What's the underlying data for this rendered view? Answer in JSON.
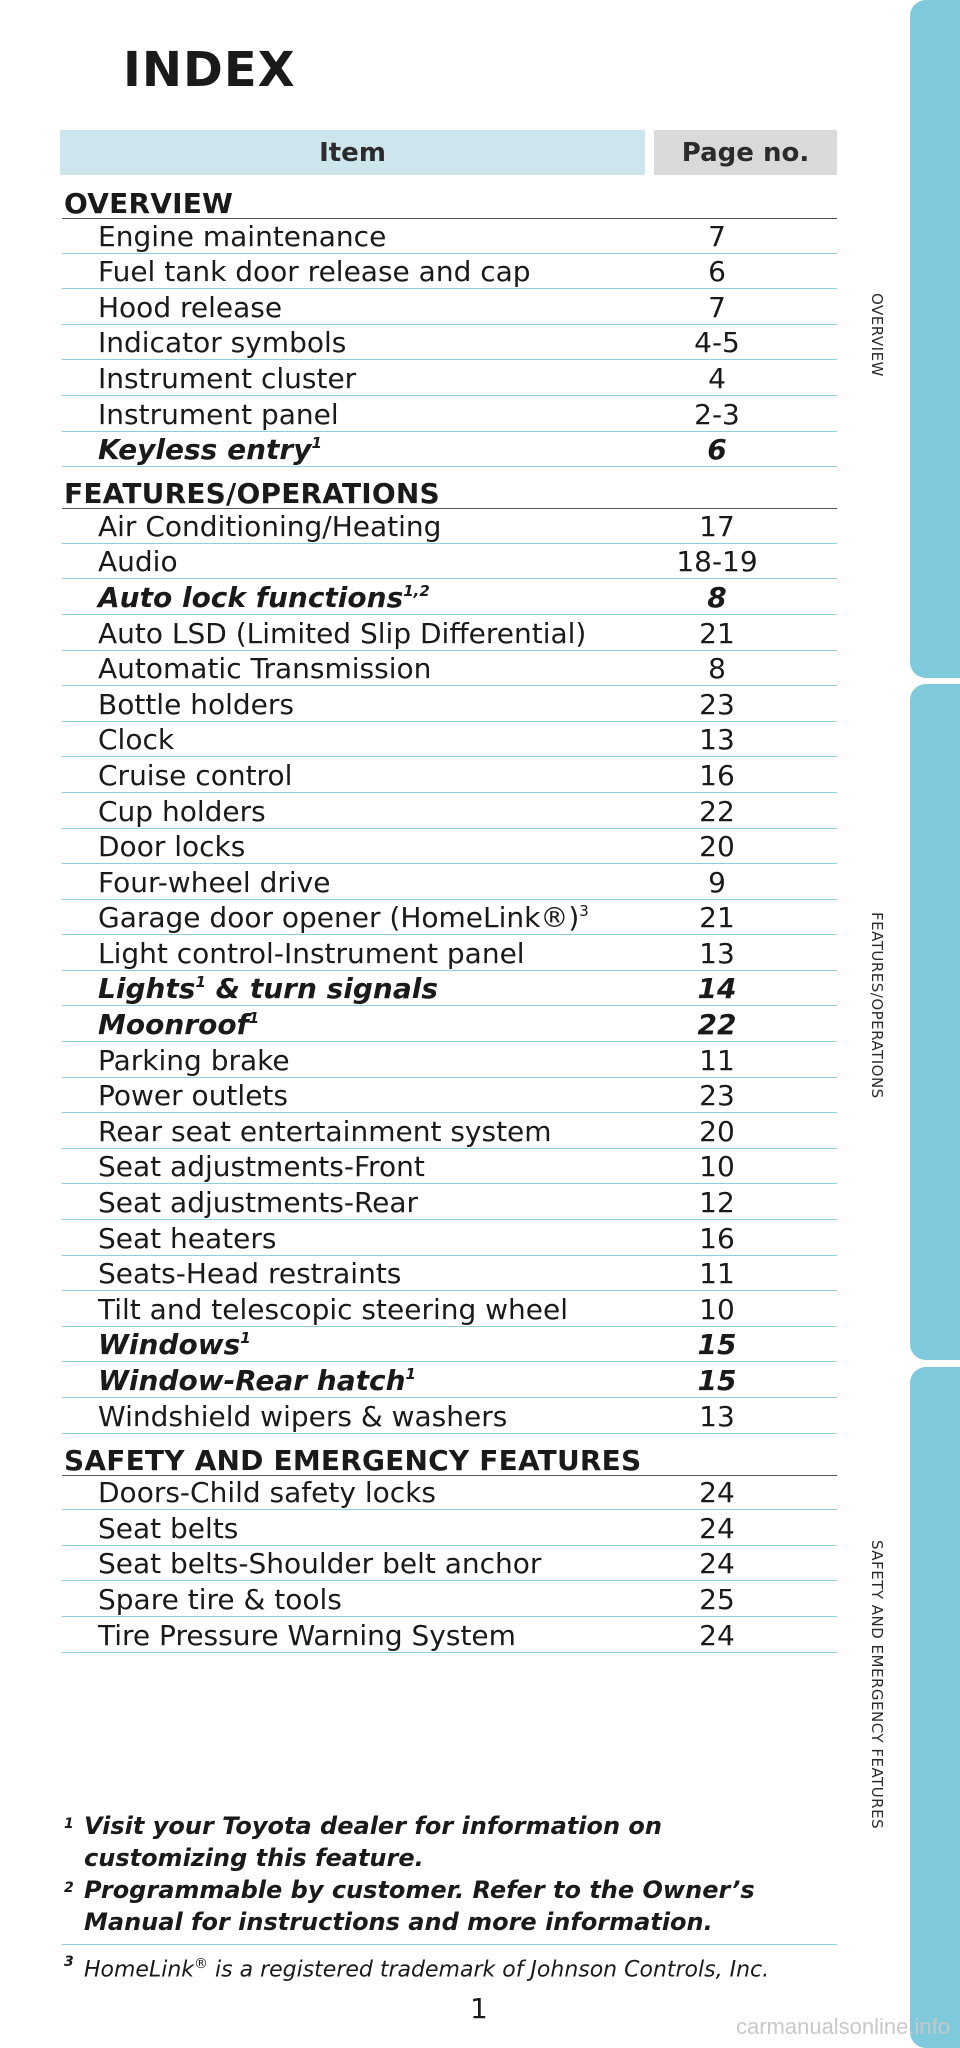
{
  "title": "INDEX",
  "header": {
    "item": "Item",
    "page": "Page no."
  },
  "sections": [
    {
      "title": "OVERVIEW",
      "rows": [
        {
          "label": "Engine maintenance",
          "page": "7"
        },
        {
          "label": "Fuel tank door release and cap",
          "page": "6"
        },
        {
          "label": "Hood release",
          "page": "7"
        },
        {
          "label": "Indicator symbols",
          "page": "4-5"
        },
        {
          "label": "Instrument cluster",
          "page": "4"
        },
        {
          "label": "Instrument panel",
          "page": "2-3"
        },
        {
          "label": "Keyless entry",
          "sup": "1",
          "page": "6",
          "emphasis": true
        }
      ]
    },
    {
      "title": "FEATURES/OPERATIONS",
      "rows": [
        {
          "label": "Air Conditioning/Heating",
          "page": "17"
        },
        {
          "label": "Audio",
          "page": "18-19"
        },
        {
          "label": "Auto lock functions",
          "sup": "1,2",
          "page": "8",
          "emphasis": true
        },
        {
          "label": "Auto LSD (Limited Slip Differential)",
          "page": "21"
        },
        {
          "label": "Automatic Transmission",
          "page": "8"
        },
        {
          "label": "Bottle holders",
          "page": "23"
        },
        {
          "label": "Clock",
          "page": "13"
        },
        {
          "label": "Cruise control",
          "page": "16"
        },
        {
          "label": "Cup holders",
          "page": "22"
        },
        {
          "label": "Door locks",
          "page": "20"
        },
        {
          "label": "Four-wheel drive",
          "page": "9"
        },
        {
          "label": "Garage door opener (HomeLink®)",
          "sup": "3",
          "page": "21"
        },
        {
          "label": "Light control-Instrument panel",
          "page": "13"
        },
        {
          "label": "Lights",
          "sup": "1",
          "suffix": " & turn signals",
          "page": "14",
          "emphasis": true
        },
        {
          "label": "Moonroof",
          "sup": "1",
          "page": "22",
          "emphasis": true
        },
        {
          "label": "Parking brake",
          "page": "11"
        },
        {
          "label": "Power outlets",
          "page": "23"
        },
        {
          "label": "Rear seat entertainment system",
          "page": "20"
        },
        {
          "label": "Seat adjustments-Front",
          "page": "10"
        },
        {
          "label": "Seat adjustments-Rear",
          "page": "12"
        },
        {
          "label": "Seat heaters",
          "page": "16"
        },
        {
          "label": "Seats-Head restraints",
          "page": "11"
        },
        {
          "label": "Tilt and telescopic steering wheel",
          "page": "10"
        },
        {
          "label": "Windows",
          "sup": "1",
          "page": "15",
          "emphasis": true
        },
        {
          "label": "Window-Rear hatch",
          "sup": "1",
          "page": "15",
          "emphasis": true
        },
        {
          "label": "Windshield wipers & washers",
          "page": "13"
        }
      ]
    },
    {
      "title": "SAFETY AND EMERGENCY FEATURES",
      "rows": [
        {
          "label": "Doors-Child safety locks",
          "page": "24"
        },
        {
          "label": "Seat belts",
          "page": "24"
        },
        {
          "label": "Seat belts-Shoulder belt anchor",
          "page": "24"
        },
        {
          "label": "Spare tire & tools",
          "page": "25"
        },
        {
          "label": "Tire Pressure Warning System",
          "page": "24"
        }
      ]
    }
  ],
  "footnotes": {
    "fn1_mark": "1",
    "fn1_line1": "Visit your Toyota dealer for information on",
    "fn1_line2": "customizing this feature.",
    "fn2_mark": "2",
    "fn2_line1": "Programmable by customer. Refer to the Owner’s",
    "fn2_line2": "Manual for instructions and more information.",
    "fn3_mark": "3",
    "fn3_pre": "HomeLink",
    "fn3_reg": "®",
    "fn3_post": " is a registered trademark of Johnson Controls, Inc."
  },
  "side_tabs": [
    "OVERVIEW",
    "FEATURES/OPERATIONS",
    "SAFETY AND EMERGENCY FEATURES"
  ],
  "page_number": "1",
  "watermark": "carmanualsonline.info",
  "colors": {
    "tab": "#7fc9dc",
    "row_rule": "#8ccfde",
    "header_item_bg": "#cde6ee",
    "header_page_bg": "#d9d9d9"
  }
}
